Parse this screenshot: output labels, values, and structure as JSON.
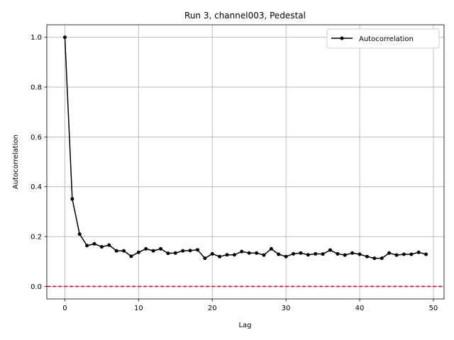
{
  "chart_data": {
    "type": "line",
    "title": "Run 3, channel003, Pedestal",
    "xlabel": "Lag",
    "ylabel": "Autocorrelation",
    "xlim": [
      -2.45,
      51.45
    ],
    "ylim": [
      -0.05,
      1.05
    ],
    "xticks": [
      0,
      10,
      20,
      30,
      40,
      50
    ],
    "yticks": [
      0.0,
      0.2,
      0.4,
      0.6,
      0.8,
      1.0
    ],
    "xtick_labels": [
      "0",
      "10",
      "20",
      "30",
      "40",
      "50"
    ],
    "ytick_labels": [
      "0.0",
      "0.2",
      "0.4",
      "0.6",
      "0.8",
      "1.0"
    ],
    "grid": true,
    "legend_position": "upper right",
    "series": [
      {
        "name": "Autocorrelation",
        "color": "#000000",
        "marker": "circle",
        "x": [
          0,
          1,
          2,
          3,
          4,
          5,
          6,
          7,
          8,
          9,
          10,
          11,
          12,
          13,
          14,
          15,
          16,
          17,
          18,
          19,
          20,
          21,
          22,
          23,
          24,
          25,
          26,
          27,
          28,
          29,
          30,
          31,
          32,
          33,
          34,
          35,
          36,
          37,
          38,
          39,
          40,
          41,
          42,
          43,
          44,
          45,
          46,
          47,
          48,
          49
        ],
        "values": [
          1.0,
          0.351,
          0.21,
          0.164,
          0.171,
          0.159,
          0.166,
          0.143,
          0.143,
          0.121,
          0.137,
          0.151,
          0.143,
          0.151,
          0.133,
          0.134,
          0.143,
          0.144,
          0.147,
          0.113,
          0.131,
          0.12,
          0.127,
          0.127,
          0.14,
          0.134,
          0.134,
          0.126,
          0.151,
          0.129,
          0.12,
          0.131,
          0.134,
          0.127,
          0.131,
          0.13,
          0.146,
          0.131,
          0.126,
          0.134,
          0.129,
          0.12,
          0.113,
          0.113,
          0.134,
          0.126,
          0.129,
          0.129,
          0.137,
          0.129
        ]
      }
    ],
    "reference_line": {
      "y": 0.0,
      "color": "#ff0000",
      "style": "dashed"
    }
  }
}
